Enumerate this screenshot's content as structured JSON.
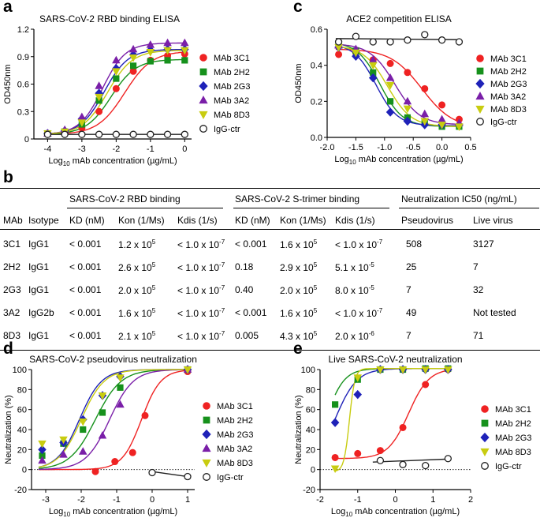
{
  "panel_labels": [
    "a",
    "b",
    "c",
    "d",
    "e"
  ],
  "colors": {
    "MAb 3C1": "#ef2222",
    "MAb 2H2": "#16911c",
    "MAb 2G3": "#1f22b8",
    "MAb 3A2": "#7a1fa8",
    "MAb 8D3": "#c8cc10",
    "IgG-ctr": "#222222"
  },
  "chart_data": [
    {
      "id": "a",
      "type": "line",
      "title": "SARS-CoV-2 RBD binding ELISA",
      "ylabel": "OD450nm",
      "xlabel": "Log10 mAb concentration (µg/mL)",
      "xlabel_parts": [
        "Log",
        "10",
        " mAb concentration (µg/mL)"
      ],
      "xlim": [
        -4.4,
        0.2
      ],
      "ylim": [
        0,
        1.2
      ],
      "xticks": [
        -4,
        -3,
        -2,
        -1,
        0
      ],
      "xtick_labels": [
        "-4",
        "-3",
        "-2",
        "-1",
        "0"
      ],
      "yticks": [
        0,
        0.3,
        0.6,
        0.9,
        1.2
      ],
      "ytick_labels": [
        "0",
        "0.3",
        "0.6",
        "0.9",
        "1.2"
      ],
      "legend": "right",
      "series": [
        {
          "name": "MAb 3C1",
          "marker": "circle",
          "x": [
            -4,
            -3.5,
            -3,
            -2.5,
            -2,
            -1.5,
            -1,
            -0.5,
            0
          ],
          "y": [
            0.06,
            0.07,
            0.12,
            0.3,
            0.55,
            0.74,
            0.86,
            0.91,
            0.93
          ],
          "curve": {
            "bottom": 0.05,
            "top": 0.96,
            "ec50": -1.75,
            "hill": 1.1
          }
        },
        {
          "name": "MAb 2H2",
          "marker": "square",
          "x": [
            -4,
            -3.5,
            -3,
            -2.5,
            -2,
            -1.5,
            -1,
            -0.5,
            0
          ],
          "y": [
            0.06,
            0.08,
            0.16,
            0.42,
            0.66,
            0.8,
            0.85,
            0.86,
            0.86
          ],
          "curve": {
            "bottom": 0.05,
            "top": 0.87,
            "ec50": -2.15,
            "hill": 1.2
          }
        },
        {
          "name": "MAb 2G3",
          "marker": "diamond",
          "x": [
            -4,
            -3.5,
            -3,
            -2.5,
            -2,
            -1.5,
            -1,
            -0.5,
            0
          ],
          "y": [
            0.06,
            0.09,
            0.22,
            0.5,
            0.77,
            0.92,
            0.97,
            0.98,
            0.98
          ],
          "curve": {
            "bottom": 0.05,
            "top": 0.98,
            "ec50": -2.35,
            "hill": 1.25
          }
        },
        {
          "name": "MAb 3A2",
          "marker": "triangle-up",
          "x": [
            -4,
            -3.5,
            -3,
            -2.5,
            -2,
            -1.5,
            -1,
            -0.5,
            0
          ],
          "y": [
            0.06,
            0.1,
            0.24,
            0.58,
            0.86,
            0.98,
            1.03,
            1.05,
            1.05
          ],
          "curve": {
            "bottom": 0.05,
            "top": 1.05,
            "ec50": -2.4,
            "hill": 1.3
          }
        },
        {
          "name": "MAb 8D3",
          "marker": "triangle-down",
          "x": [
            -4,
            -3.5,
            -3,
            -2.5,
            -2,
            -1.5,
            -1,
            -0.5,
            0
          ],
          "y": [
            0.06,
            0.08,
            0.18,
            0.46,
            0.74,
            0.89,
            0.95,
            0.97,
            0.97
          ],
          "curve": {
            "bottom": 0.05,
            "top": 0.97,
            "ec50": -2.25,
            "hill": 1.2
          }
        },
        {
          "name": "IgG-ctr",
          "marker": "open-circle",
          "x": [
            -4,
            -3.5,
            -3,
            -2.5,
            -2,
            -1.5,
            -1,
            -0.5,
            0
          ],
          "y": [
            0.05,
            0.05,
            0.05,
            0.05,
            0.05,
            0.05,
            0.05,
            0.05,
            0.05
          ],
          "curve": {
            "bottom": 0.05,
            "top": 0.05,
            "ec50": -2,
            "hill": 1
          }
        }
      ]
    },
    {
      "id": "c",
      "type": "line",
      "title": "ACE2 competition ELISA",
      "ylabel": "OD450nm",
      "xlabel": "Log10 mAb concentration (µg/mL)",
      "xlabel_parts": [
        "Log",
        "10",
        " mAb concentration (µg/mL)"
      ],
      "xlim": [
        -2.0,
        0.5
      ],
      "ylim": [
        0,
        0.6
      ],
      "xticks": [
        -2.0,
        -1.5,
        -1.0,
        -0.5,
        0.0,
        0.5
      ],
      "xtick_labels": [
        "-2.0",
        "-1.5",
        "-1.0",
        "-0.5",
        "0.0",
        "0.5"
      ],
      "yticks": [
        0,
        0.2,
        0.4,
        0.6
      ],
      "ytick_labels": [
        "0.0",
        "0.2",
        "0.4",
        "0.6"
      ],
      "legend": "right",
      "series": [
        {
          "name": "MAb 3C1",
          "marker": "circle",
          "x": [
            -1.8,
            -1.5,
            -1.2,
            -0.9,
            -0.6,
            -0.3,
            0,
            0.3
          ],
          "y": [
            0.46,
            0.47,
            0.43,
            0.41,
            0.36,
            0.27,
            0.18,
            0.1
          ],
          "curve": {
            "bottom": 0.05,
            "top": 0.49,
            "ec50": -0.35,
            "hill": -1.6
          }
        },
        {
          "name": "MAb 2H2",
          "marker": "square",
          "x": [
            -1.8,
            -1.5,
            -1.2,
            -0.9,
            -0.6,
            -0.3,
            0,
            0.3
          ],
          "y": [
            0.52,
            0.48,
            0.36,
            0.2,
            0.11,
            0.08,
            0.06,
            0.06
          ],
          "curve": {
            "bottom": 0.06,
            "top": 0.53,
            "ec50": -1.08,
            "hill": -2.2
          }
        },
        {
          "name": "MAb 2G3",
          "marker": "diamond",
          "x": [
            -1.8,
            -1.5,
            -1.2,
            -0.9,
            -0.6,
            -0.3,
            0,
            0.3
          ],
          "y": [
            0.5,
            0.45,
            0.33,
            0.14,
            0.09,
            0.07,
            0.07,
            0.07
          ],
          "curve": {
            "bottom": 0.065,
            "top": 0.52,
            "ec50": -1.15,
            "hill": -2.3
          }
        },
        {
          "name": "MAb 3A2",
          "marker": "triangle-up",
          "x": [
            -1.8,
            -1.5,
            -1.2,
            -0.9,
            -0.6,
            -0.3,
            0,
            0.3
          ],
          "y": [
            0.51,
            0.49,
            0.43,
            0.33,
            0.2,
            0.13,
            0.1,
            0.08
          ],
          "curve": {
            "bottom": 0.07,
            "top": 0.52,
            "ec50": -0.82,
            "hill": -2.0
          }
        },
        {
          "name": "MAb 8D3",
          "marker": "triangle-down",
          "x": [
            -1.8,
            -1.5,
            -1.2,
            -0.9,
            -0.6,
            -0.3,
            0,
            0.3
          ],
          "y": [
            0.5,
            0.47,
            0.4,
            0.29,
            0.16,
            0.09,
            0.07,
            0.06
          ],
          "curve": {
            "bottom": 0.06,
            "top": 0.51,
            "ec50": -0.95,
            "hill": -2.1
          }
        },
        {
          "name": "IgG-ctr",
          "marker": "open-circle",
          "x": [
            -1.8,
            -1.5,
            -1.2,
            -0.9,
            -0.6,
            -0.3,
            0,
            0.3
          ],
          "y": [
            0.53,
            0.56,
            0.53,
            0.53,
            0.54,
            0.57,
            0.54,
            0.53
          ],
          "line": [
            [
              -1.85,
              0.548
            ],
            [
              0.32,
              0.542
            ]
          ]
        }
      ]
    },
    {
      "id": "d",
      "type": "line",
      "title": "SARS-CoV-2 pseudovirus neutralization",
      "ylabel": "Neutralization (%)",
      "xlabel": "Log10 mAb concentration (µg/mL)",
      "xlabel_parts": [
        "Log",
        "10",
        " mAb concentration (µg/mL)"
      ],
      "xlim": [
        -3.4,
        1.2
      ],
      "ylim": [
        -20,
        100
      ],
      "xticks": [
        -3,
        -2,
        -1,
        0,
        1
      ],
      "xtick_labels": [
        "-3",
        "-2",
        "-1",
        "0",
        "1"
      ],
      "yticks": [
        -20,
        0,
        20,
        40,
        60,
        80,
        100
      ],
      "ytick_labels": [
        "-20",
        "0",
        "20",
        "40",
        "60",
        "80",
        "100"
      ],
      "legend": "right",
      "series": [
        {
          "name": "MAb 3C1",
          "marker": "circle",
          "x": [
            -1.6,
            -1.05,
            -0.55,
            -0.2,
            1.0
          ],
          "y": [
            -2,
            8,
            17,
            54,
            98
          ],
          "curve": {
            "bottom": 0,
            "top": 100,
            "ec50": -0.3,
            "hill": 1.6
          }
        },
        {
          "name": "MAb 2H2",
          "marker": "square",
          "x": [
            -3.1,
            -2.5,
            -1.95,
            -1.4,
            -0.9,
            1.0
          ],
          "y": [
            14,
            26,
            40,
            57,
            82,
            100
          ],
          "curve": {
            "bottom": 0,
            "top": 100,
            "ec50": -1.6,
            "hill": 1.2
          }
        },
        {
          "name": "MAb 2G3",
          "marker": "diamond",
          "x": [
            -3.1,
            -2.5,
            -1.95,
            -1.4,
            -0.9,
            1.0
          ],
          "y": [
            20,
            27,
            50,
            74,
            93,
            100
          ],
          "curve": {
            "bottom": 0,
            "top": 100,
            "ec50": -2.05,
            "hill": 1.4
          }
        },
        {
          "name": "MAb 3A2",
          "marker": "triangle-up",
          "x": [
            -3.1,
            -2.5,
            -1.95,
            -1.4,
            -0.9,
            1.0
          ],
          "y": [
            9,
            15,
            18,
            34,
            65,
            100
          ],
          "curve": {
            "bottom": 0,
            "top": 100,
            "ec50": -1.2,
            "hill": 1.3
          }
        },
        {
          "name": "MAb 8D3",
          "marker": "triangle-down",
          "x": [
            -3.1,
            -2.5,
            -1.95,
            -1.4,
            -0.9,
            1.0
          ],
          "y": [
            26,
            30,
            48,
            74,
            92,
            100
          ],
          "curve": {
            "bottom": 0,
            "top": 100,
            "ec50": -2.0,
            "hill": 1.35
          }
        },
        {
          "name": "IgG-ctr",
          "marker": "open-circle",
          "x": [
            0,
            1.0
          ],
          "y": [
            -3,
            -7
          ],
          "line": [
            [
              0,
              -2
            ],
            [
              1.0,
              -7
            ]
          ]
        }
      ]
    },
    {
      "id": "e",
      "type": "line",
      "title": "Live SARS-CoV-2 neutralization",
      "ylabel": "Neutralization (%)",
      "xlabel": "Log10 mAb concentration (µg/mL)",
      "xlabel_parts": [
        "Log",
        "10",
        " mAb concentration (µg/mL)"
      ],
      "xlim": [
        -2,
        2
      ],
      "ylim": [
        -20,
        100
      ],
      "xticks": [
        -2,
        -1,
        0,
        1,
        2
      ],
      "xtick_labels": [
        "-2",
        "-1",
        "0",
        "1",
        "2"
      ],
      "yticks": [
        -20,
        0,
        20,
        40,
        60,
        80,
        100
      ],
      "ytick_labels": [
        "-20",
        "0",
        "20",
        "40",
        "60",
        "80",
        "100"
      ],
      "legend": "right",
      "series": [
        {
          "name": "MAb 3C1",
          "marker": "circle",
          "x": [
            -1.6,
            -1.0,
            -0.4,
            0.2,
            0.8,
            1.4
          ],
          "y": [
            12,
            16,
            19,
            42,
            85,
            100
          ],
          "curve": {
            "bottom": 11,
            "top": 101,
            "ec50": 0.35,
            "hill": 1.6
          }
        },
        {
          "name": "MAb 2H2",
          "marker": "square",
          "x": [
            -1.6,
            -1.0,
            -0.4,
            0.2,
            0.8,
            1.4
          ],
          "y": [
            65,
            90,
            100,
            100,
            101,
            101
          ],
          "curve": {
            "bottom": 0,
            "top": 101,
            "ec50": -1.85,
            "hill": 1.8
          }
        },
        {
          "name": "MAb 2G3",
          "marker": "diamond",
          "x": [
            -1.6,
            -1.0,
            -0.4,
            0.2,
            0.8,
            1.4
          ],
          "y": [
            47,
            75,
            100,
            100,
            100,
            100
          ],
          "curve": {
            "bottom": 0,
            "top": 101,
            "ec50": -1.6,
            "hill": 1.5
          }
        },
        {
          "name": "MAb 8D3",
          "marker": "triangle-down",
          "x": [
            -1.6,
            -1.0,
            -0.4,
            0.2,
            0.8,
            1.4
          ],
          "y": [
            1,
            92,
            100,
            100,
            100,
            100
          ],
          "curve": {
            "bottom": -2,
            "top": 101,
            "ec50": -1.22,
            "hill": 6
          }
        },
        {
          "name": "IgG-ctr",
          "marker": "open-circle",
          "x": [
            -0.4,
            0.2,
            0.8,
            1.4
          ],
          "y": [
            9,
            5,
            4,
            11
          ],
          "line": [
            [
              -0.6,
              7.5
            ],
            [
              1.4,
              10.5
            ]
          ]
        }
      ]
    }
  ],
  "table": {
    "group_headers": [
      "SARS-CoV-2 RBD binding",
      "SARS-CoV-2 S-trimer binding",
      "Neutralization IC50 (ng/mL)"
    ],
    "columns": [
      "MAb",
      "Isotype",
      "KD (nM)",
      "Kon (1/Ms)",
      "Kdis (1/s)",
      "KD (nM)",
      "Kon (1/Ms)",
      "Kdis (1/s)",
      "Pseudovirus",
      "Live virus"
    ],
    "rows": [
      [
        "3C1",
        "IgG1",
        "< 0.001",
        "1.2 x 10^5",
        "< 1.0 x 10^-7",
        "< 0.001",
        "1.6 x 10^5",
        "< 1.0 x 10^-7",
        "508",
        "3127"
      ],
      [
        "2H2",
        "IgG1",
        "< 0.001",
        "2.6 x 10^5",
        "< 1.0 x 10^-7",
        "0.18",
        "2.9 x 10^5",
        "5.1 x 10^-5",
        "25",
        "7"
      ],
      [
        "2G3",
        "IgG1",
        "< 0.001",
        "2.0 x 10^5",
        "< 1.0 x 10^-7",
        "0.40",
        "2.0 x 10^5",
        "8.0 x 10^-5",
        "7",
        "32"
      ],
      [
        "3A2",
        "IgG2b",
        "< 0.001",
        "1.6 x 10^5",
        "< 1.0 x 10^-7",
        "< 0.001",
        "1.6 x 10^5",
        "< 1.0 x 10^-7",
        "49",
        "Not tested"
      ],
      [
        "8D3",
        "IgG1",
        "< 0.001",
        "2.1 x 10^5",
        "< 1.0 x 10^-7",
        "0.005",
        "4.3 x 10^5",
        "2.0 x 10^-6",
        "7",
        "71"
      ]
    ]
  }
}
